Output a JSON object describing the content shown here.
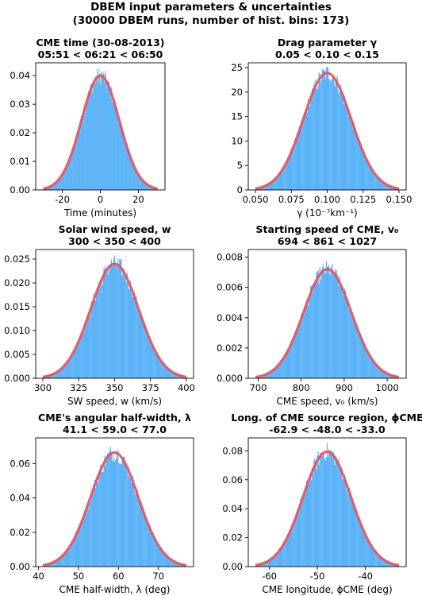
{
  "figure": {
    "title_line1": "DBEM input parameters & uncertainties",
    "title_line2": "(30000 DBEM runs, number of hist. bins: 173)"
  },
  "colors": {
    "bars": "#5bb3f7",
    "fit": "#e8505b"
  },
  "chart_data": [
    {
      "type": "bar",
      "title": [
        "CME time (30-08-2013)",
        "05:51 < 06:21 < 06:50"
      ],
      "xlabel": "Time (minutes)",
      "xlim": [
        -34,
        34
      ],
      "ylim": [
        0,
        0.0445
      ],
      "xticks": [
        -20,
        0,
        20
      ],
      "yticks": [
        0.0,
        0.01,
        0.02,
        0.03,
        0.04
      ],
      "ytick_decimals": 2,
      "hist_range": [
        -30,
        30
      ],
      "gaussian_fit": {
        "mean": 0,
        "sigma": 10,
        "peak": 0.04
      }
    },
    {
      "type": "bar",
      "title": [
        "Drag parameter γ",
        "0.05 < 0.10 < 0.15"
      ],
      "xlabel": "γ (10⁻⁷km⁻¹)",
      "xlim": [
        0.045,
        0.155
      ],
      "ylim": [
        0,
        26
      ],
      "xticks": [
        0.05,
        0.075,
        0.1,
        0.125,
        0.15
      ],
      "xtick_decimals": 3,
      "yticks": [
        0,
        5,
        10,
        15,
        20,
        25
      ],
      "ytick_decimals": 0,
      "hist_range": [
        0.05,
        0.15
      ],
      "gaussian_fit": {
        "mean": 0.1,
        "sigma": 0.0167,
        "peak": 23.9
      }
    },
    {
      "type": "bar",
      "title": [
        "Solar wind speed, w",
        "300 < 350 < 400"
      ],
      "xlabel": "SW speed, w (km/s)",
      "xlim": [
        295,
        405
      ],
      "ylim": [
        0,
        0.027
      ],
      "xticks": [
        300,
        325,
        350,
        375,
        400
      ],
      "yticks": [
        0.0,
        0.005,
        0.01,
        0.015,
        0.02,
        0.025
      ],
      "ytick_decimals": 3,
      "hist_range": [
        300,
        400
      ],
      "gaussian_fit": {
        "mean": 350,
        "sigma": 16.7,
        "peak": 0.024
      }
    },
    {
      "type": "bar",
      "title": [
        "Starting speed of CME, v₀",
        "694 < 861 < 1027"
      ],
      "xlabel": "CME speed, v₀ (km/s)",
      "xlim": [
        677,
        1044
      ],
      "ylim": [
        0,
        0.0085
      ],
      "xticks": [
        700,
        800,
        900,
        1000
      ],
      "yticks": [
        0.0,
        0.002,
        0.004,
        0.006,
        0.008
      ],
      "ytick_decimals": 3,
      "hist_range": [
        694,
        1027
      ],
      "gaussian_fit": {
        "mean": 861,
        "sigma": 55.5,
        "peak": 0.0072
      }
    },
    {
      "type": "bar",
      "title": [
        "CME's angular half-width, λ",
        "41.1 < 59.0 < 77.0"
      ],
      "xlabel": "CME half-width, λ (deg)",
      "xlim": [
        39.3,
        78.8
      ],
      "ylim": [
        0,
        0.075
      ],
      "xticks": [
        40,
        50,
        60,
        70
      ],
      "yticks": [
        0.0,
        0.02,
        0.04,
        0.06
      ],
      "ytick_decimals": 2,
      "hist_range": [
        41.1,
        77.0
      ],
      "gaussian_fit": {
        "mean": 59.0,
        "sigma": 6.0,
        "peak": 0.0665
      }
    },
    {
      "type": "bar",
      "title": [
        "Long. of CME source region, ϕCME",
        "-62.9 < -48.0 < -33.0"
      ],
      "xlabel": "CME longitude, ϕCME (deg)",
      "xlim": [
        -64.4,
        -31.5
      ],
      "ylim": [
        0,
        0.089
      ],
      "xticks": [
        -60,
        -50,
        -40
      ],
      "yticks": [
        0.0,
        0.02,
        0.04,
        0.06,
        0.08
      ],
      "ytick_decimals": 2,
      "hist_range": [
        -62.9,
        -33.0
      ],
      "gaussian_fit": {
        "mean": -48.0,
        "sigma": 5.0,
        "peak": 0.0795
      }
    }
  ]
}
